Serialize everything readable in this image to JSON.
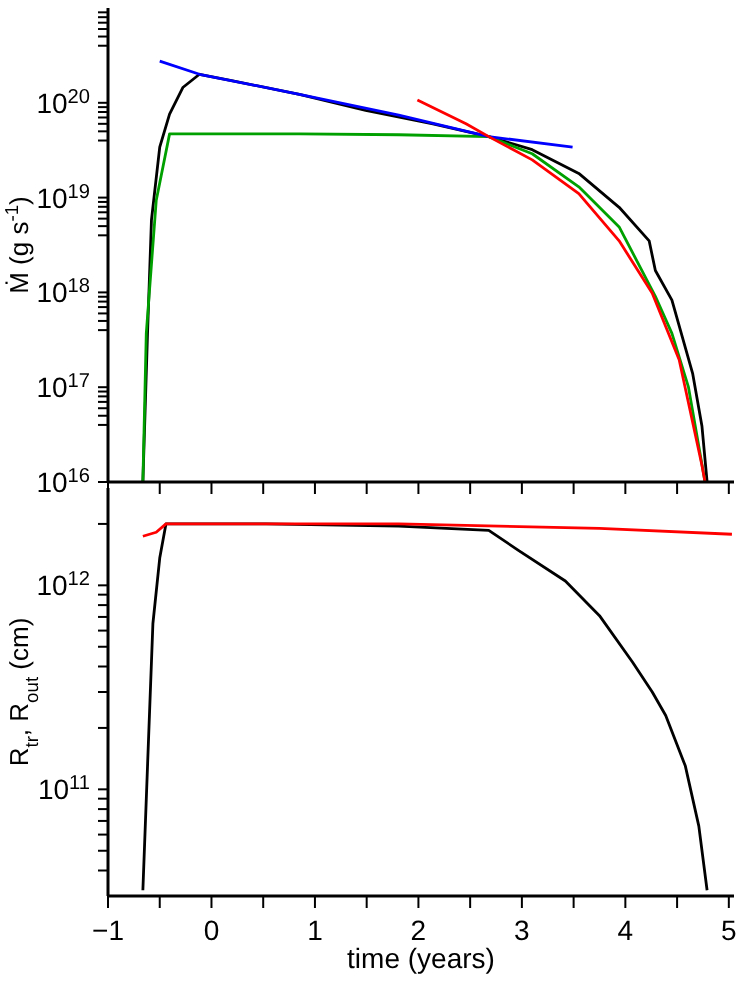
{
  "chart_data": [
    {
      "type": "line",
      "ylabel": "Ṁ (g s$^{-1}$)",
      "log": "y",
      "grid": false,
      "marker": "none",
      "line_style": "solid",
      "tick_labels": "y",
      "xlim": [
        -1,
        5.05
      ],
      "xticks": [
        {
          "value": -1,
          "label": null
        },
        {
          "value": -0.5,
          "label": null
        },
        {
          "value": 0,
          "label": null
        },
        {
          "value": 0.5,
          "label": null
        },
        {
          "value": 1,
          "label": null
        },
        {
          "value": 1.5,
          "label": null
        },
        {
          "value": 2,
          "label": null
        },
        {
          "value": 2.5,
          "label": null
        },
        {
          "value": 3,
          "label": null
        },
        {
          "value": 3.5,
          "label": null
        },
        {
          "value": 4,
          "label": null
        },
        {
          "value": 4.5,
          "label": null
        },
        {
          "value": 5,
          "label": null
        }
      ],
      "ylim": [
        1e+16,
        1e+21
      ],
      "yticks": [
        {
          "value": 1e+16,
          "label": "10$^{16}$"
        },
        {
          "value": 4e+16,
          "label": null
        },
        {
          "value": 5e+16,
          "label": null
        },
        {
          "value": 6e+16,
          "label": null
        },
        {
          "value": 7e+16,
          "label": null
        },
        {
          "value": 8e+16,
          "label": null
        },
        {
          "value": 9e+16,
          "label": null
        },
        {
          "value": 1e+17,
          "label": "10$^{17}$"
        },
        {
          "value": 4e+17,
          "label": null
        },
        {
          "value": 5e+17,
          "label": null
        },
        {
          "value": 6e+17,
          "label": null
        },
        {
          "value": 7e+17,
          "label": null
        },
        {
          "value": 8e+17,
          "label": null
        },
        {
          "value": 9e+17,
          "label": null
        },
        {
          "value": 1e+18,
          "label": "10$^{18}$"
        },
        {
          "value": 4e+18,
          "label": null
        },
        {
          "value": 5e+18,
          "label": null
        },
        {
          "value": 6e+18,
          "label": null
        },
        {
          "value": 7e+18,
          "label": null
        },
        {
          "value": 8e+18,
          "label": null
        },
        {
          "value": 9e+18,
          "label": null
        },
        {
          "value": 1e+19,
          "label": "10$^{19}$"
        },
        {
          "value": 4e+19,
          "label": null
        },
        {
          "value": 5e+19,
          "label": null
        },
        {
          "value": 6e+19,
          "label": null
        },
        {
          "value": 7e+19,
          "label": null
        },
        {
          "value": 8e+19,
          "label": null
        },
        {
          "value": 9e+19,
          "label": null
        },
        {
          "value": 1e+20,
          "label": "10$^{20}$"
        },
        {
          "value": 4e+20,
          "label": null
        },
        {
          "value": 5e+20,
          "label": null
        },
        {
          "value": 6e+20,
          "label": null
        },
        {
          "value": 7e+20,
          "label": null
        },
        {
          "value": 8e+20,
          "label": null
        },
        {
          "value": 9e+20,
          "label": null
        }
      ],
      "series": [
        {
          "color": "#000000",
          "x": [
            -0.663,
            -0.618,
            -0.58,
            -0.5,
            -0.405,
            -0.277,
            -0.116,
            0.206,
            0.85,
            1.49,
            2.14,
            2.68,
            3.1,
            3.55,
            3.94,
            4.23,
            4.29,
            4.45,
            4.65,
            4.74,
            4.79
          ],
          "values": [
            1e+16,
            3.7e+17,
            5.8e+18,
            3.4e+19,
            7.6e+19,
            1.45e+20,
            2e+20,
            1.7e+20,
            1.23e+20,
            8.3e+19,
            6e+19,
            4.4e+19,
            3.2e+19,
            1.8e+19,
            7.9e+18,
            3.5e+18,
            1.7e+18,
            8.3e+17,
            1.4e+17,
            3.9e+16,
            1e+16
          ]
        },
        {
          "color": "#00a000",
          "x": [
            -0.663,
            -0.63,
            -0.534,
            -0.405,
            0.85,
            1.81,
            2.68,
            3.1,
            3.55,
            3.94,
            4.29,
            4.45,
            4.61,
            4.77
          ],
          "values": [
            1e+16,
            3.7e+17,
            9.3e+18,
            4.7e+19,
            4.7e+19,
            4.6e+19,
            4.4e+19,
            2.9e+19,
            1.3e+19,
            4.9e+18,
            9.1e+17,
            3.7e+17,
            1e+17,
            1e+16
          ]
        },
        {
          "color": "#0000ff",
          "x": [
            -0.5,
            -0.116,
            0.85,
            1.81,
            2.68,
            3.49
          ],
          "values": [
            2.75e+20,
            2e+20,
            1.23e+20,
            7.4e+19,
            4.4e+19,
            3.4e+19
          ]
        },
        {
          "color": "#ff0000",
          "x": [
            1.99,
            2.46,
            2.68,
            3.1,
            3.55,
            3.94,
            4.26,
            4.52,
            4.74,
            4.77
          ],
          "values": [
            1.07e+20,
            6e+19,
            4.4e+19,
            2.5e+19,
            1.1e+19,
            3.5e+18,
            9.8e+17,
            1.95e+17,
            1.5e+16,
            1e+16
          ]
        }
      ]
    },
    {
      "type": "line",
      "xlabel": "time (years)",
      "ylabel": "R$_{tr}$, R$_{out}$ (cm)",
      "log": "y",
      "grid": false,
      "marker": "none",
      "line_style": "solid",
      "xlim": [
        -1,
        5.05
      ],
      "xticks": [
        -1,
        {
          "value": -0.5,
          "label": null
        },
        0,
        {
          "value": 0.5,
          "label": null
        },
        1,
        {
          "value": 1.5,
          "label": null
        },
        2,
        {
          "value": 2.5,
          "label": null
        },
        3,
        {
          "value": 3.5,
          "label": null
        },
        4,
        {
          "value": 4.5,
          "label": null
        },
        5
      ],
      "ylim": [
        30000000000.0,
        3000000000000.0
      ],
      "yticks": [
        {
          "value": 40000000000.0,
          "label": null
        },
        {
          "value": 50000000000.0,
          "label": null
        },
        {
          "value": 60000000000.0,
          "label": null
        },
        {
          "value": 70000000000.0,
          "label": null
        },
        {
          "value": 80000000000.0,
          "label": null
        },
        {
          "value": 90000000000.0,
          "label": null
        },
        {
          "value": 100000000000.0,
          "label": "10$^{11}$"
        },
        {
          "value": 200000000000.0,
          "label": null
        },
        {
          "value": 300000000000.0,
          "label": null
        },
        {
          "value": 400000000000.0,
          "label": null
        },
        {
          "value": 500000000000.0,
          "label": null
        },
        {
          "value": 600000000000.0,
          "label": null
        },
        {
          "value": 700000000000.0,
          "label": null
        },
        {
          "value": 800000000000.0,
          "label": null
        },
        {
          "value": 900000000000.0,
          "label": null
        },
        {
          "value": 1000000000000.0,
          "label": "10$^{12}$"
        },
        {
          "value": 2000000000000.0,
          "label": null
        }
      ],
      "series": [
        {
          "color": "#000000",
          "x": [
            -0.663,
            -0.618,
            -0.566,
            -0.5,
            -0.44,
            0.53,
            1.81,
            2.68,
            2.97,
            3.42,
            3.75,
            4.07,
            4.26,
            4.39,
            4.58,
            4.71,
            4.79
          ],
          "values": [
            32000000000.0,
            130000000000.0,
            650000000000.0,
            1360000000000.0,
            2000000000000.0,
            2000000000000.0,
            1950000000000.0,
            1860000000000.0,
            1480000000000.0,
            1050000000000.0,
            710000000000.0,
            420000000000.0,
            300000000000.0,
            230000000000.0,
            130000000000.0,
            66000000000.0,
            32000000000.0
          ]
        },
        {
          "color": "#ff0000",
          "x": [
            -0.663,
            -0.534,
            -0.44,
            1.81,
            3.75,
            5.03
          ],
          "values": [
            1740000000000.0,
            1820000000000.0,
            2000000000000.0,
            2000000000000.0,
            1900000000000.0,
            1780000000000.0
          ]
        }
      ]
    }
  ]
}
